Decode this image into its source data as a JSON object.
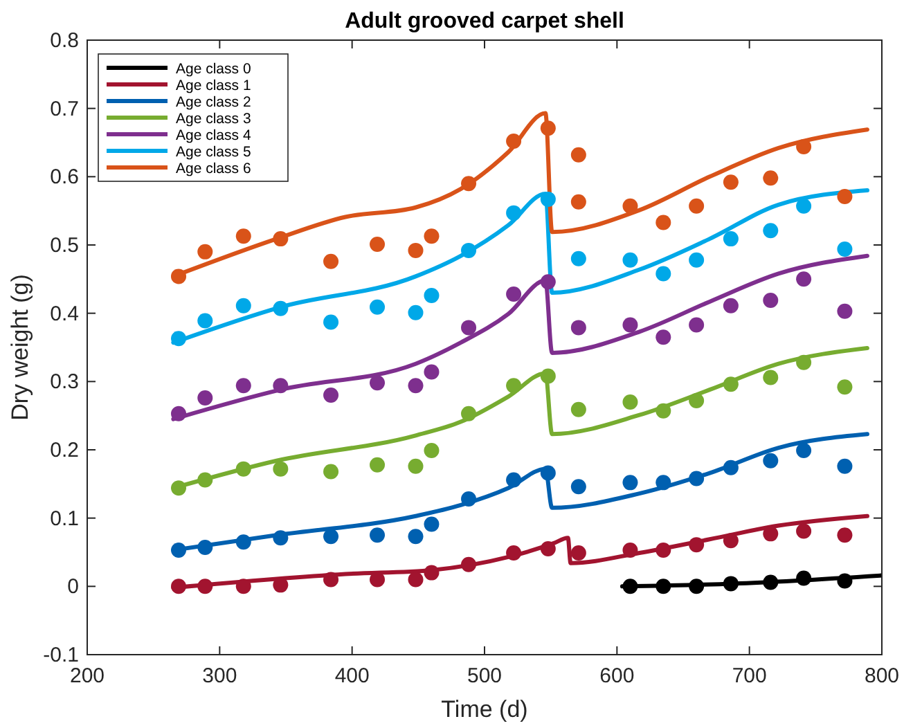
{
  "chart_data": {
    "type": "line",
    "title": "Adult grooved carpet shell",
    "xlabel": "Time (d)",
    "ylabel": "Dry weight (g)",
    "xlim": [
      200,
      800
    ],
    "ylim": [
      -0.1,
      0.8
    ],
    "xticks": [
      200,
      300,
      400,
      500,
      600,
      700,
      800
    ],
    "yticks": [
      -0.1,
      0,
      0.1,
      0.2,
      0.3,
      0.4,
      0.5,
      0.6,
      0.7,
      0.8
    ],
    "grid": false,
    "legend": "top left",
    "line_style": "solid",
    "series": [
      {
        "name": "Age class 0",
        "color": "#000000",
        "marker": "none",
        "x": [
          604,
          688,
          800
        ],
        "values": [
          0.0,
          0.004,
          0.016
        ]
      },
      {
        "name": "Age class 1",
        "color": "#a2142f",
        "marker": "none",
        "x": [
          265,
          395,
          461,
          518,
          552,
          563,
          565,
          617,
          670,
          722,
          789
        ],
        "values": [
          -0.002,
          0.018,
          0.024,
          0.043,
          0.063,
          0.071,
          0.034,
          0.049,
          0.069,
          0.089,
          0.103
        ]
      },
      {
        "name": "Age class 2",
        "color": "#0060b0",
        "marker": "none",
        "x": [
          265,
          343,
          448,
          482,
          518,
          546,
          551,
          617,
          670,
          722,
          789
        ],
        "values": [
          0.053,
          0.075,
          0.103,
          0.119,
          0.144,
          0.172,
          0.115,
          0.136,
          0.166,
          0.203,
          0.223
        ]
      },
      {
        "name": "Age class 3",
        "color": "#77ac30",
        "marker": "none",
        "x": [
          265,
          343,
          448,
          482,
          518,
          546,
          551,
          617,
          670,
          722,
          789
        ],
        "values": [
          0.144,
          0.184,
          0.221,
          0.241,
          0.278,
          0.312,
          0.223,
          0.251,
          0.288,
          0.326,
          0.349
        ]
      },
      {
        "name": "Age class 4",
        "color": "#7e2f8e",
        "marker": "none",
        "x": [
          265,
          346,
          448,
          482,
          518,
          546,
          551,
          617,
          670,
          722,
          789
        ],
        "values": [
          0.245,
          0.288,
          0.326,
          0.357,
          0.399,
          0.448,
          0.342,
          0.373,
          0.417,
          0.458,
          0.484
        ]
      },
      {
        "name": "Age class 5",
        "color": "#00a8e8",
        "marker": "none",
        "x": [
          265,
          346,
          448,
          482,
          518,
          546,
          551,
          617,
          670,
          722,
          789
        ],
        "values": [
          0.357,
          0.409,
          0.454,
          0.484,
          0.529,
          0.575,
          0.43,
          0.464,
          0.509,
          0.559,
          0.58
        ]
      },
      {
        "name": "Age class 6",
        "color": "#d95319",
        "marker": "none",
        "x": [
          265,
          343,
          395,
          448,
          482,
          518,
          546,
          551,
          617,
          670,
          722,
          789
        ],
        "values": [
          0.454,
          0.509,
          0.541,
          0.555,
          0.582,
          0.636,
          0.693,
          0.519,
          0.551,
          0.6,
          0.642,
          0.669
        ]
      },
      {
        "color": "#000000",
        "type": "scatter",
        "marker": "circle",
        "x": [
          610,
          635,
          660,
          686,
          716,
          741,
          772
        ],
        "values": [
          0.0,
          0.0,
          0.0,
          0.004,
          0.006,
          0.012,
          0.008
        ]
      },
      {
        "color": "#a2142f",
        "type": "scatter",
        "marker": "circle",
        "x": [
          269,
          289,
          318,
          346,
          384,
          419,
          448,
          460,
          488,
          522,
          548,
          571,
          610,
          635,
          660,
          686,
          716,
          741,
          772
        ],
        "values": [
          0.0,
          0.0,
          0.0,
          0.002,
          0.01,
          0.01,
          0.01,
          0.02,
          0.032,
          0.049,
          0.055,
          0.049,
          0.053,
          0.053,
          0.061,
          0.067,
          0.077,
          0.081,
          0.075
        ]
      },
      {
        "color": "#0060b0",
        "type": "scatter",
        "marker": "circle",
        "x": [
          269,
          289,
          318,
          346,
          384,
          419,
          448,
          460,
          488,
          522,
          548,
          571,
          610,
          635,
          660,
          686,
          716,
          741,
          772
        ],
        "values": [
          0.053,
          0.057,
          0.065,
          0.071,
          0.073,
          0.075,
          0.073,
          0.091,
          0.128,
          0.156,
          0.166,
          0.146,
          0.152,
          0.152,
          0.158,
          0.174,
          0.184,
          0.199,
          0.176
        ]
      },
      {
        "color": "#77ac30",
        "type": "scatter",
        "marker": "circle",
        "x": [
          269,
          289,
          318,
          346,
          384,
          419,
          448,
          460,
          488,
          522,
          548,
          571,
          610,
          635,
          660,
          686,
          716,
          741,
          772
        ],
        "values": [
          0.144,
          0.156,
          0.172,
          0.172,
          0.168,
          0.178,
          0.176,
          0.199,
          0.253,
          0.294,
          0.308,
          0.259,
          0.27,
          0.257,
          0.272,
          0.296,
          0.306,
          0.328,
          0.292
        ]
      },
      {
        "color": "#7e2f8e",
        "type": "scatter",
        "marker": "circle",
        "x": [
          269,
          289,
          318,
          346,
          384,
          419,
          448,
          460,
          488,
          522,
          548,
          571,
          610,
          635,
          660,
          686,
          716,
          741,
          772
        ],
        "values": [
          0.253,
          0.276,
          0.294,
          0.294,
          0.28,
          0.298,
          0.294,
          0.314,
          0.379,
          0.428,
          0.446,
          0.379,
          0.383,
          0.365,
          0.383,
          0.411,
          0.419,
          0.45,
          0.403
        ]
      },
      {
        "color": "#00a8e8",
        "type": "scatter",
        "marker": "circle",
        "x": [
          269,
          289,
          318,
          346,
          384,
          419,
          448,
          460,
          488,
          522,
          548,
          571,
          610,
          635,
          660,
          686,
          716,
          741,
          772
        ],
        "values": [
          0.363,
          0.389,
          0.411,
          0.407,
          0.387,
          0.409,
          0.401,
          0.426,
          0.492,
          0.547,
          0.567,
          0.48,
          0.478,
          0.458,
          0.478,
          0.509,
          0.521,
          0.557,
          0.494
        ]
      },
      {
        "color": "#d95319",
        "type": "scatter",
        "marker": "circle",
        "x": [
          269,
          289,
          318,
          346,
          384,
          419,
          448,
          460,
          488,
          522,
          548,
          571,
          571,
          610,
          635,
          660,
          686,
          716,
          741,
          772
        ],
        "values": [
          0.454,
          0.49,
          0.513,
          0.509,
          0.476,
          0.501,
          0.492,
          0.513,
          0.59,
          0.652,
          0.671,
          0.632,
          0.563,
          0.557,
          0.533,
          0.557,
          0.592,
          0.598,
          0.644,
          0.571
        ]
      }
    ]
  }
}
